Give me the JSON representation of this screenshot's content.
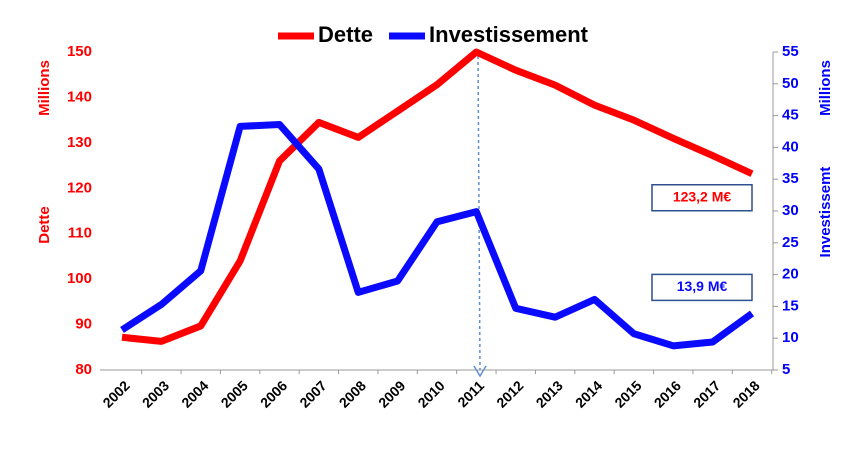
{
  "chart_data": {
    "type": "line",
    "categories": [
      "2002",
      "2003",
      "2004",
      "2005",
      "2006",
      "2007",
      "2008",
      "2009",
      "2010",
      "2011",
      "2012",
      "2013",
      "2014",
      "2015",
      "2016",
      "2017",
      "2018"
    ],
    "series": [
      {
        "name": "Dette",
        "color": "#ff0000",
        "axis": "y",
        "values": [
          87.2,
          86.3,
          89.7,
          104,
          126,
          134.5,
          131.2,
          137,
          142.8,
          150,
          146,
          142.7,
          138.3,
          135,
          131,
          127.2,
          123.2
        ],
        "value_labels": [
          null,
          null,
          null,
          null,
          null,
          null,
          null,
          null,
          null,
          null,
          null,
          null,
          null,
          null,
          null,
          null,
          "123,2 M€"
        ]
      },
      {
        "name": "Investissement",
        "color": "#0a0aff",
        "axis": "y2",
        "values": [
          11.3,
          15.3,
          20.6,
          43.3,
          43.6,
          36.6,
          17.2,
          19,
          28.3,
          29.9,
          14.7,
          13.3,
          16.1,
          10.7,
          8.8,
          9.4,
          13.9
        ],
        "value_labels": [
          null,
          null,
          null,
          null,
          null,
          null,
          null,
          null,
          null,
          null,
          null,
          null,
          null,
          null,
          null,
          null,
          "13,9 M€"
        ]
      }
    ],
    "ylabel": "Dette",
    "yunit": "Millions",
    "y2label": "Investissemt",
    "y2unit": "Millions",
    "ylim": [
      80,
      150
    ],
    "yticks": [
      80,
      90,
      100,
      110,
      120,
      130,
      140,
      150
    ],
    "y2lim": [
      5,
      55
    ],
    "y2ticks": [
      5,
      10,
      15,
      20,
      25,
      30,
      35,
      40,
      45,
      50,
      55
    ],
    "legend": "top"
  }
}
